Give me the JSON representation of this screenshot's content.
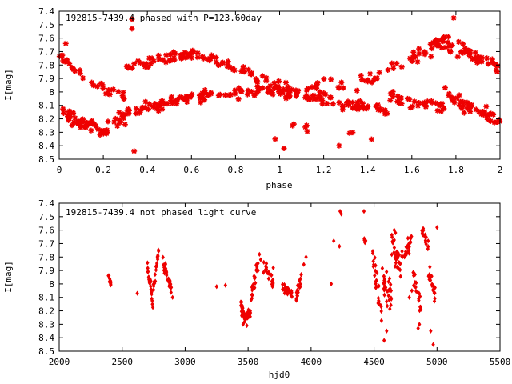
{
  "colors": {
    "points": "#ee0000",
    "axes": "#000000",
    "background": "#ffffff"
  },
  "chart_data": [
    {
      "type": "scatter",
      "title": "192815-7439.4 phased with P=123.60day",
      "xlabel": "phase",
      "ylabel": "I[mag]",
      "xlim": [
        0,
        2
      ],
      "ylim": [
        7.4,
        8.5
      ],
      "y_inverted": true,
      "grid": false,
      "marker": "star",
      "x_ticks": [
        "0",
        "0.2",
        "0.4",
        "0.6",
        "0.8",
        "1",
        "1.2",
        "1.4",
        "1.6",
        "1.8",
        "2"
      ],
      "y_ticks": [
        "7.4",
        "7.5",
        "7.6",
        "7.7",
        "7.8",
        "7.9",
        "8",
        "8.1",
        "8.2",
        "8.3",
        "8.4",
        "8.5"
      ],
      "segments": [
        {
          "x0": 0.0,
          "x1": 0.18,
          "y0": 8.15,
          "y1": 8.28,
          "n": 40,
          "s": 0.05
        },
        {
          "x0": 0.18,
          "x1": 0.3,
          "y0": 8.28,
          "y1": 8.2,
          "n": 20,
          "s": 0.06
        },
        {
          "x0": 0.3,
          "x1": 0.65,
          "y0": 8.15,
          "y1": 8.03,
          "n": 55,
          "s": 0.04
        },
        {
          "x0": 0.65,
          "x1": 1.0,
          "y0": 8.03,
          "y1": 7.98,
          "n": 45,
          "s": 0.04
        },
        {
          "x0": 1.0,
          "x1": 1.2,
          "y0": 8.0,
          "y1": 8.05,
          "n": 35,
          "s": 0.04
        },
        {
          "x0": 1.2,
          "x1": 1.5,
          "y0": 8.05,
          "y1": 8.15,
          "n": 35,
          "s": 0.05
        },
        {
          "x0": 1.5,
          "x1": 1.75,
          "y0": 8.05,
          "y1": 8.12,
          "n": 35,
          "s": 0.05
        },
        {
          "x0": 1.75,
          "x1": 2.0,
          "y0": 8.02,
          "y1": 8.22,
          "n": 45,
          "s": 0.05
        },
        {
          "x0": 0.0,
          "x1": 0.1,
          "y0": 7.7,
          "y1": 7.9,
          "n": 14,
          "s": 0.04
        },
        {
          "x0": 0.1,
          "x1": 0.3,
          "y0": 7.9,
          "y1": 8.05,
          "n": 18,
          "s": 0.05
        },
        {
          "x0": 0.3,
          "x1": 0.65,
          "y0": 7.82,
          "y1": 7.7,
          "n": 45,
          "s": 0.04
        },
        {
          "x0": 0.65,
          "x1": 1.0,
          "y0": 7.73,
          "y1": 7.95,
          "n": 40,
          "s": 0.04
        },
        {
          "x0": 1.0,
          "x1": 1.45,
          "y0": 7.98,
          "y1": 7.92,
          "n": 30,
          "s": 0.06
        },
        {
          "x0": 1.45,
          "x1": 1.75,
          "y0": 7.85,
          "y1": 7.62,
          "n": 35,
          "s": 0.06
        },
        {
          "x0": 1.75,
          "x1": 2.0,
          "y0": 7.62,
          "y1": 7.82,
          "n": 40,
          "s": 0.06
        },
        {
          "x0": 1.05,
          "x1": 1.45,
          "y0": 8.25,
          "y1": 8.35,
          "n": 8,
          "s": 0.08
        }
      ],
      "points": [
        [
          0.33,
          7.46
        ],
        [
          0.34,
          8.44
        ],
        [
          1.79,
          7.45
        ],
        [
          1.02,
          8.42
        ],
        [
          1.27,
          8.4
        ],
        [
          0.98,
          8.35
        ],
        [
          0.33,
          7.53
        ],
        [
          0.03,
          7.64
        ]
      ]
    },
    {
      "type": "scatter",
      "title": "192815-7439.4 not phased light curve",
      "xlabel": "hjd0",
      "ylabel": "I[mag]",
      "xlim": [
        2000,
        5500
      ],
      "ylim": [
        7.4,
        8.5
      ],
      "y_inverted": true,
      "grid": false,
      "marker": "diamond",
      "x_ticks": [
        "2000",
        "2500",
        "3000",
        "3500",
        "4000",
        "4500",
        "5000",
        "5500"
      ],
      "y_ticks": [
        "7.4",
        "7.5",
        "7.6",
        "7.7",
        "7.8",
        "7.9",
        "8",
        "8.1",
        "8.2",
        "8.3",
        "8.4",
        "8.5"
      ],
      "segments": [
        {
          "x0": 2390,
          "x1": 2410,
          "y0": 7.93,
          "y1": 8.0,
          "n": 10,
          "s": 0.02
        },
        {
          "x0": 2700,
          "x1": 2720,
          "y0": 7.85,
          "y1": 8.0,
          "n": 10,
          "s": 0.03
        },
        {
          "x0": 2720,
          "x1": 2745,
          "y0": 7.95,
          "y1": 8.2,
          "n": 15,
          "s": 0.04
        },
        {
          "x0": 2745,
          "x1": 2790,
          "y0": 8.05,
          "y1": 7.75,
          "n": 20,
          "s": 0.04
        },
        {
          "x0": 2820,
          "x1": 2890,
          "y0": 7.82,
          "y1": 8.05,
          "n": 35,
          "s": 0.05
        },
        {
          "x0": 3440,
          "x1": 3480,
          "y0": 8.15,
          "y1": 8.28,
          "n": 28,
          "s": 0.05
        },
        {
          "x0": 3480,
          "x1": 3520,
          "y0": 8.25,
          "y1": 8.2,
          "n": 20,
          "s": 0.04
        },
        {
          "x0": 3520,
          "x1": 3580,
          "y0": 8.1,
          "y1": 7.85,
          "n": 22,
          "s": 0.05
        },
        {
          "x0": 3620,
          "x1": 3700,
          "y0": 7.85,
          "y1": 8.0,
          "n": 25,
          "s": 0.05
        },
        {
          "x0": 3770,
          "x1": 3850,
          "y0": 8.02,
          "y1": 8.08,
          "n": 25,
          "s": 0.03
        },
        {
          "x0": 3880,
          "x1": 3950,
          "y0": 8.1,
          "y1": 7.85,
          "n": 22,
          "s": 0.05
        },
        {
          "x0": 4420,
          "x1": 4440,
          "y0": 7.68,
          "y1": 7.72,
          "n": 6,
          "s": 0.03
        },
        {
          "x0": 4490,
          "x1": 4560,
          "y0": 7.8,
          "y1": 8.2,
          "n": 25,
          "s": 0.1
        },
        {
          "x0": 4560,
          "x1": 4640,
          "y0": 8.0,
          "y1": 8.1,
          "n": 30,
          "s": 0.12
        },
        {
          "x0": 4640,
          "x1": 4720,
          "y0": 7.7,
          "y1": 7.9,
          "n": 30,
          "s": 0.09
        },
        {
          "x0": 4720,
          "x1": 4800,
          "y0": 7.8,
          "y1": 7.7,
          "n": 25,
          "s": 0.08
        },
        {
          "x0": 4800,
          "x1": 4880,
          "y0": 7.9,
          "y1": 8.2,
          "n": 20,
          "s": 0.08
        },
        {
          "x0": 4880,
          "x1": 4930,
          "y0": 7.6,
          "y1": 7.7,
          "n": 15,
          "s": 0.06
        },
        {
          "x0": 4930,
          "x1": 4990,
          "y0": 7.9,
          "y1": 8.1,
          "n": 20,
          "s": 0.09
        }
      ],
      "points": [
        [
          4230,
          7.46
        ],
        [
          4240,
          7.48
        ],
        [
          4420,
          7.46
        ],
        [
          4180,
          7.68
        ],
        [
          4225,
          7.72
        ],
        [
          4160,
          8.0
        ],
        [
          3320,
          8.01
        ],
        [
          2620,
          8.07
        ],
        [
          5000,
          7.58
        ],
        [
          4970,
          8.45
        ],
        [
          4950,
          8.35
        ],
        [
          4580,
          8.42
        ],
        [
          4600,
          8.35
        ],
        [
          4850,
          8.33
        ],
        [
          4860,
          8.3
        ],
        [
          3250,
          8.02
        ],
        [
          2900,
          8.1
        ],
        [
          3460,
          8.3
        ],
        [
          3490,
          8.31
        ],
        [
          3600,
          7.82
        ],
        [
          3590,
          7.78
        ],
        [
          3700,
          7.88
        ],
        [
          3960,
          7.8
        ],
        [
          4660,
          7.6
        ],
        [
          4670,
          7.62
        ],
        [
          4800,
          8.05
        ],
        [
          4780,
          8.1
        ]
      ]
    }
  ]
}
